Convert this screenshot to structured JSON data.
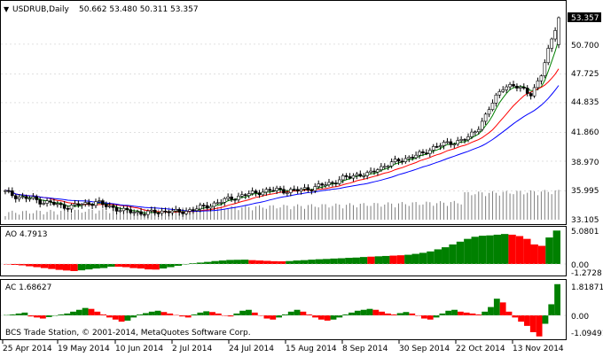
{
  "main_chart": {
    "symbol_label": "USDRUB,Daily",
    "ohlc_readout": "50.662 53.480 50.311 53.357",
    "current_price_tag": "53.357",
    "price_axis_ticks": [
      "53.357",
      "50.700",
      "47.725",
      "44.835",
      "41.860",
      "38.970",
      "35.995",
      "33.105"
    ]
  },
  "ao_panel": {
    "label": "AO 4.7913",
    "axis_ticks": [
      "5.0801",
      "0.00",
      "-1.2728"
    ]
  },
  "ac_panel": {
    "label": "AC 1.68627",
    "axis_ticks": [
      "1.81871",
      "0.00",
      "-1.09491"
    ]
  },
  "copyright": "BCS Trade Station, © 2001-2014, MetaQuotes Software Corp.",
  "date_axis": [
    "25 Apr 2014",
    "19 May 2014",
    "10 Jun 2014",
    "2 Jul 2014",
    "24 Jul 2014",
    "15 Aug 2014",
    "8 Sep 2014",
    "30 Sep 2014",
    "22 Oct 2014",
    "13 Nov 2014"
  ],
  "colors": {
    "background": "#ffffff",
    "frame": "#000000",
    "grid": "#c0c0c0",
    "volume": "#808080",
    "ma_fast": "#008000",
    "ma_mid": "#ff0000",
    "ma_slow": "#0000ff",
    "histogram_up": "#008000",
    "histogram_down": "#ff0000",
    "price_tag_bg": "#000000",
    "price_tag_text": "#ffffff"
  },
  "chart_data": [
    {
      "type": "candlestick",
      "title": "USDRUB,Daily",
      "ylim": [
        33.105,
        53.357
      ],
      "x_labels": [
        "25 Apr 2014",
        "19 May 2014",
        "10 Jun 2014",
        "2 Jul 2014",
        "24 Jul 2014",
        "15 Aug 2014",
        "8 Sep 2014",
        "30 Sep 2014",
        "22 Oct 2014",
        "13 Nov 2014"
      ],
      "close_series": [
        35.9,
        35.5,
        35.3,
        35.2,
        34.9,
        34.8,
        34.5,
        34.4,
        34.6,
        34.7,
        34.9,
        34.5,
        34.3,
        34.0,
        33.9,
        33.8,
        33.8,
        33.9,
        34.0,
        33.8,
        34.0,
        34.2,
        34.4,
        34.7,
        35.0,
        35.3,
        35.5,
        35.7,
        35.9,
        36.0,
        36.1,
        36.0,
        36.0,
        36.2,
        36.3,
        36.6,
        36.8,
        37.2,
        37.4,
        37.7,
        37.6,
        38.2,
        38.6,
        38.9,
        39.2,
        39.5,
        39.7,
        40.3,
        40.6,
        40.8,
        41.0,
        41.3,
        42.2,
        43.6,
        45.3,
        46.6,
        46.4,
        46.3,
        45.7,
        47.3,
        50.7,
        53.357
      ],
      "last_ohlc": {
        "open": 50.662,
        "high": 53.48,
        "low": 50.311,
        "close": 53.357
      }
    },
    {
      "type": "bar",
      "title": "AO 4.7913",
      "ylim": [
        -1.2728,
        5.0801
      ],
      "values": [
        -0.05,
        -0.1,
        -0.15,
        -0.25,
        -0.35,
        -0.45,
        -0.55,
        -0.65,
        -0.72,
        -0.78,
        -0.7,
        -0.6,
        -0.5,
        -0.45,
        -0.3,
        -0.3,
        -0.35,
        -0.45,
        -0.5,
        -0.6,
        -0.62,
        -0.5,
        -0.35,
        -0.2,
        -0.05,
        0.1,
        0.2,
        0.3,
        0.42,
        0.5,
        0.58,
        0.6,
        0.62,
        0.55,
        0.5,
        0.45,
        0.4,
        0.38,
        0.42,
        0.5,
        0.55,
        0.62,
        0.68,
        0.72,
        0.78,
        0.82,
        0.88,
        0.92,
        1.0,
        1.05,
        1.1,
        1.15,
        1.2,
        1.25,
        1.32,
        1.45,
        1.6,
        1.8,
        2.1,
        2.4,
        2.8,
        3.2,
        3.6,
        3.9,
        4.05,
        4.1,
        4.2,
        4.3,
        4.2,
        4.0,
        3.6,
        2.8,
        2.6,
        3.8,
        4.7913
      ],
      "direction": [
        "down",
        "down",
        "down",
        "down",
        "down",
        "down",
        "down",
        "down",
        "down",
        "down",
        "up",
        "up",
        "up",
        "up",
        "up",
        "down",
        "down",
        "down",
        "down",
        "down",
        "down",
        "up",
        "up",
        "up",
        "up",
        "up",
        "up",
        "up",
        "up",
        "up",
        "up",
        "up",
        "up",
        "down",
        "down",
        "down",
        "down",
        "down",
        "up",
        "up",
        "up",
        "up",
        "up",
        "up",
        "up",
        "up",
        "up",
        "up",
        "up",
        "down",
        "up",
        "up",
        "down",
        "down",
        "up",
        "up",
        "up",
        "up",
        "up",
        "up",
        "up",
        "up",
        "up",
        "up",
        "up",
        "up",
        "up",
        "up",
        "down",
        "down",
        "down",
        "down",
        "down",
        "up",
        "up"
      ]
    },
    {
      "type": "bar",
      "title": "AC 1.68627",
      "ylim": [
        -1.09491,
        1.81871
      ],
      "values": [
        0.02,
        0.05,
        0.1,
        0.15,
        -0.05,
        -0.1,
        -0.15,
        -0.08,
        0.0,
        0.05,
        0.1,
        0.2,
        0.3,
        0.4,
        0.35,
        0.2,
        0.05,
        -0.1,
        -0.2,
        -0.3,
        -0.25,
        -0.1,
        0.05,
        0.12,
        0.2,
        0.25,
        0.18,
        0.1,
        0.02,
        -0.05,
        -0.1,
        0.05,
        0.15,
        0.22,
        0.18,
        0.1,
        0.0,
        -0.05,
        0.1,
        0.25,
        0.3,
        0.15,
        0.0,
        -0.15,
        -0.2,
        -0.1,
        0.05,
        0.2,
        0.3,
        0.2,
        0.05,
        -0.1,
        -0.2,
        -0.25,
        -0.2,
        -0.1,
        0.05,
        0.15,
        0.25,
        0.3,
        0.35,
        0.3,
        0.2,
        0.1,
        0.05,
        0.12,
        0.18,
        0.1,
        0.0,
        -0.15,
        -0.2,
        -0.1,
        0.1,
        0.25,
        0.3,
        0.2,
        0.15,
        0.1,
        0.05,
        0.2,
        0.45,
        0.9,
        0.7,
        0.2,
        -0.1,
        -0.3,
        -0.5,
        -0.8,
        -1.0,
        -0.4,
        0.6,
        1.68627
      ],
      "direction": [
        "up",
        "up",
        "up",
        "up",
        "down",
        "down",
        "down",
        "up",
        "up",
        "up",
        "up",
        "up",
        "up",
        "up",
        "down",
        "down",
        "down",
        "down",
        "down",
        "down",
        "up",
        "up",
        "up",
        "up",
        "up",
        "up",
        "down",
        "down",
        "down",
        "down",
        "down",
        "up",
        "up",
        "up",
        "down",
        "down",
        "down",
        "down",
        "up",
        "up",
        "up",
        "down",
        "down",
        "down",
        "down",
        "up",
        "up",
        "up",
        "up",
        "down",
        "down",
        "down",
        "down",
        "down",
        "up",
        "up",
        "up",
        "up",
        "up",
        "up",
        "up",
        "down",
        "down",
        "down",
        "down",
        "up",
        "up",
        "down",
        "down",
        "down",
        "down",
        "up",
        "up",
        "up",
        "up",
        "down",
        "down",
        "down",
        "down",
        "up",
        "up",
        "up",
        "down",
        "down",
        "down",
        "down",
        "down",
        "down",
        "down",
        "up",
        "up",
        "up"
      ]
    }
  ]
}
